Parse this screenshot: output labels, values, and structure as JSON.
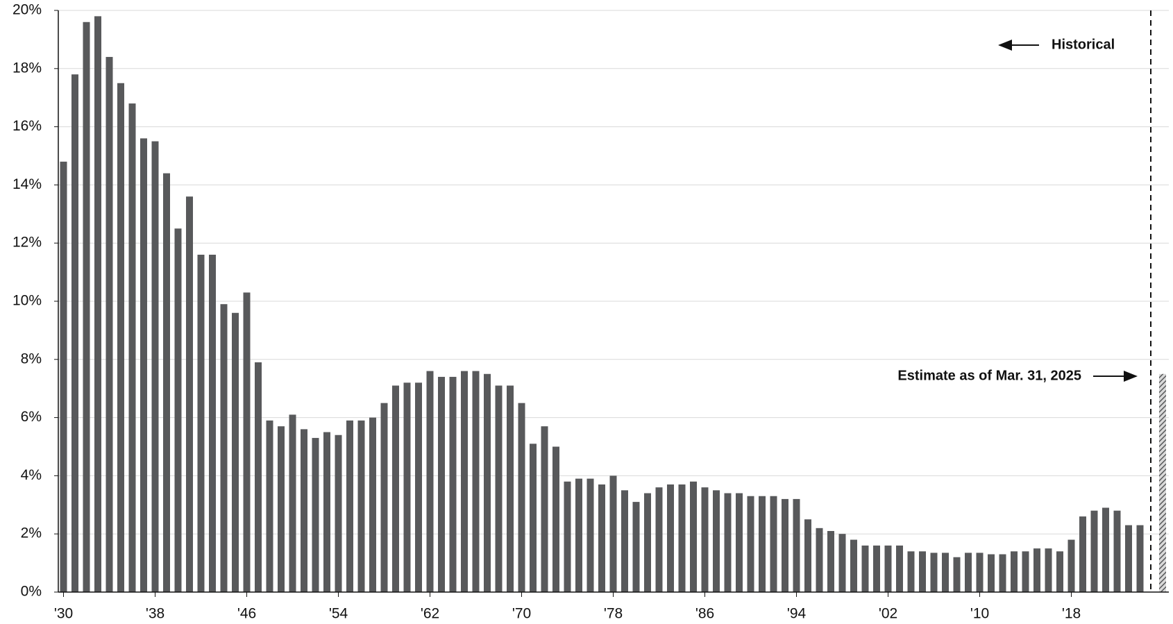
{
  "chart_data": {
    "type": "bar",
    "categories": [
      "'30",
      null,
      null,
      null,
      null,
      null,
      null,
      null,
      "'38",
      null,
      null,
      null,
      null,
      null,
      null,
      null,
      "'46",
      null,
      null,
      null,
      null,
      null,
      null,
      null,
      "'54",
      null,
      null,
      null,
      null,
      null,
      null,
      null,
      "'62",
      null,
      null,
      null,
      null,
      null,
      null,
      null,
      "'70",
      null,
      null,
      null,
      null,
      null,
      null,
      null,
      "'78",
      null,
      null,
      null,
      null,
      null,
      null,
      null,
      "'86",
      null,
      null,
      null,
      null,
      null,
      null,
      null,
      "'94",
      null,
      null,
      null,
      null,
      null,
      null,
      null,
      "'02",
      null,
      null,
      null,
      null,
      null,
      null,
      null,
      "'10",
      null,
      null,
      null,
      null,
      null,
      null,
      null,
      "'18",
      null,
      null,
      null,
      null,
      null,
      null
    ],
    "values": [
      14.8,
      17.8,
      19.6,
      19.8,
      18.4,
      17.5,
      16.8,
      15.6,
      15.5,
      14.4,
      12.5,
      13.6,
      11.6,
      11.6,
      9.9,
      9.6,
      10.3,
      7.9,
      5.9,
      5.7,
      6.1,
      5.6,
      5.3,
      5.5,
      5.4,
      5.9,
      5.9,
      6.0,
      6.5,
      7.1,
      7.2,
      7.2,
      7.6,
      7.4,
      7.4,
      7.6,
      7.6,
      7.5,
      7.1,
      7.1,
      6.5,
      5.1,
      5.7,
      5.0,
      3.8,
      3.9,
      3.9,
      3.7,
      4.0,
      3.5,
      3.1,
      3.4,
      3.6,
      3.7,
      3.7,
      3.8,
      3.6,
      3.5,
      3.4,
      3.4,
      3.3,
      3.3,
      3.3,
      3.2,
      3.2,
      2.5,
      2.2,
      2.1,
      2.0,
      1.8,
      1.6,
      1.6,
      1.6,
      1.6,
      1.4,
      1.4,
      1.35,
      1.35,
      1.2,
      1.35,
      1.35,
      1.3,
      1.3,
      1.4,
      1.4,
      1.5,
      1.5,
      1.4,
      1.8,
      2.6,
      2.8,
      2.9,
      2.8,
      2.3,
      2.3
    ],
    "color": "#58595b",
    "estimate": {
      "label": "Estimate as of Mar. 31, 2025",
      "value": 7.5
    },
    "historical_label": "Historical",
    "ylim": [
      0,
      20
    ],
    "yticks": [
      {
        "value": 0,
        "label": "0%"
      },
      {
        "value": 2,
        "label": "2%"
      },
      {
        "value": 4,
        "label": "4%"
      },
      {
        "value": 6,
        "label": "6%"
      },
      {
        "value": 8,
        "label": "8%"
      },
      {
        "value": 10,
        "label": "10%"
      },
      {
        "value": 12,
        "label": "12%"
      },
      {
        "value": 14,
        "label": "14%"
      },
      {
        "value": 16,
        "label": "16%"
      },
      {
        "value": 18,
        "label": "18%"
      },
      {
        "value": 20,
        "label": "20%"
      }
    ],
    "grid": true
  }
}
